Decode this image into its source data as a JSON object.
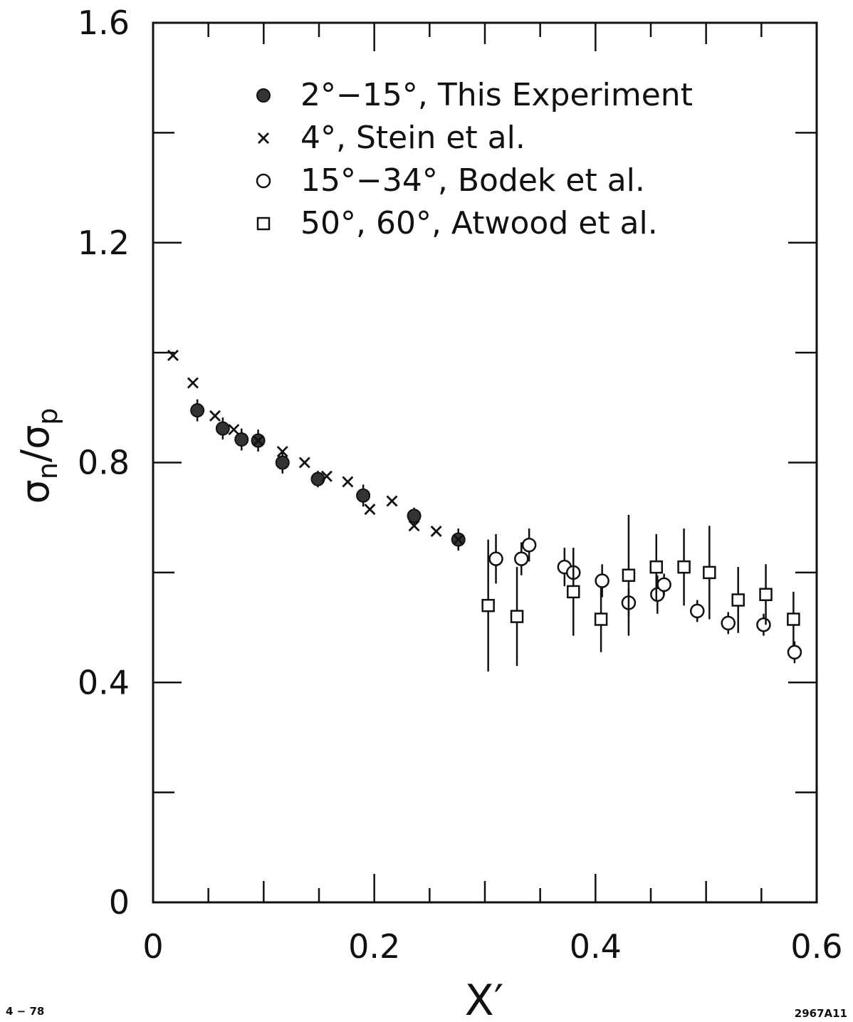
{
  "chart_data": {
    "type": "scatter",
    "xlabel": "X′",
    "ylabel_main": "σ",
    "ylabel_sub_n": "n",
    "ylabel_slash": "/",
    "ylabel_sub_p": "p",
    "xlim": [
      0,
      0.6
    ],
    "ylim": [
      0,
      1.6
    ],
    "x_ticks": [
      "0",
      "0.2",
      "0.4",
      "0.6"
    ],
    "x_tick_values": [
      0,
      0.2,
      0.4,
      0.6
    ],
    "y_ticks": [
      "0",
      "0.4",
      "0.8",
      "1.2",
      "1.6"
    ],
    "y_tick_values": [
      0,
      0.4,
      0.8,
      1.2,
      1.6
    ],
    "grid": false,
    "legend_placement": "top-right",
    "series": [
      {
        "name": "2°−15°, This Experiment",
        "marker": "filled-circle",
        "points": [
          {
            "x": 0.04,
            "y": 0.895,
            "err": 0.02
          },
          {
            "x": 0.063,
            "y": 0.862,
            "err": 0.02
          },
          {
            "x": 0.08,
            "y": 0.842,
            "err": 0.02
          },
          {
            "x": 0.095,
            "y": 0.84,
            "err": 0.02
          },
          {
            "x": 0.117,
            "y": 0.8,
            "err": 0.02
          },
          {
            "x": 0.149,
            "y": 0.77,
            "err": 0.015
          },
          {
            "x": 0.19,
            "y": 0.74,
            "err": 0.02
          },
          {
            "x": 0.236,
            "y": 0.703,
            "err": 0.015
          },
          {
            "x": 0.276,
            "y": 0.66,
            "err": 0.02
          }
        ]
      },
      {
        "name": "4°, Stein et al.",
        "marker": "cross",
        "points": [
          {
            "x": 0.018,
            "y": 0.995
          },
          {
            "x": 0.036,
            "y": 0.945
          },
          {
            "x": 0.056,
            "y": 0.885
          },
          {
            "x": 0.073,
            "y": 0.86
          },
          {
            "x": 0.095,
            "y": 0.84
          },
          {
            "x": 0.117,
            "y": 0.82
          },
          {
            "x": 0.137,
            "y": 0.8
          },
          {
            "x": 0.157,
            "y": 0.775
          },
          {
            "x": 0.176,
            "y": 0.765
          },
          {
            "x": 0.196,
            "y": 0.715
          },
          {
            "x": 0.216,
            "y": 0.73
          },
          {
            "x": 0.236,
            "y": 0.685
          },
          {
            "x": 0.256,
            "y": 0.675
          },
          {
            "x": 0.276,
            "y": 0.66
          }
        ]
      },
      {
        "name": "15°−34°, Bodek et al.",
        "marker": "open-circle",
        "points": [
          {
            "x": 0.31,
            "y": 0.625,
            "err": 0.045
          },
          {
            "x": 0.333,
            "y": 0.625,
            "err": 0.03
          },
          {
            "x": 0.34,
            "y": 0.65,
            "err": 0.03
          },
          {
            "x": 0.372,
            "y": 0.61,
            "err": 0.035
          },
          {
            "x": 0.38,
            "y": 0.6,
            "err": 0.04
          },
          {
            "x": 0.406,
            "y": 0.585,
            "err": 0.03
          },
          {
            "x": 0.43,
            "y": 0.545,
            "err": 0.025
          },
          {
            "x": 0.456,
            "y": 0.56,
            "err": 0.035
          },
          {
            "x": 0.462,
            "y": 0.578,
            "err": 0.02
          },
          {
            "x": 0.492,
            "y": 0.53,
            "err": 0.02
          },
          {
            "x": 0.52,
            "y": 0.508,
            "err": 0.02
          },
          {
            "x": 0.552,
            "y": 0.505,
            "err": 0.02
          },
          {
            "x": 0.58,
            "y": 0.455,
            "err": 0.02
          }
        ]
      },
      {
        "name": "50°, 60°, Atwood et al.",
        "marker": "open-square",
        "points": [
          {
            "x": 0.303,
            "y": 0.54,
            "err": 0.12
          },
          {
            "x": 0.329,
            "y": 0.52,
            "err": 0.09
          },
          {
            "x": 0.38,
            "y": 0.565,
            "err": 0.08
          },
          {
            "x": 0.405,
            "y": 0.515,
            "err": 0.06
          },
          {
            "x": 0.43,
            "y": 0.595,
            "err": 0.11
          },
          {
            "x": 0.455,
            "y": 0.61,
            "err": 0.06
          },
          {
            "x": 0.48,
            "y": 0.61,
            "err": 0.07
          },
          {
            "x": 0.503,
            "y": 0.6,
            "err": 0.085
          },
          {
            "x": 0.529,
            "y": 0.55,
            "err": 0.06
          },
          {
            "x": 0.554,
            "y": 0.56,
            "err": 0.055
          },
          {
            "x": 0.579,
            "y": 0.515,
            "err": 0.05
          }
        ]
      }
    ]
  },
  "notes": {
    "left": "4 − 78",
    "right": "2967A11"
  }
}
